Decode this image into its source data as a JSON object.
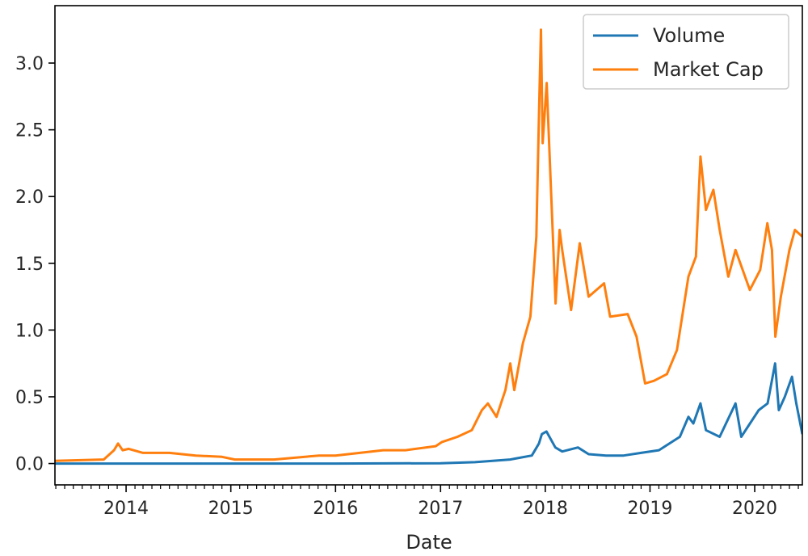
{
  "chart_data": {
    "type": "line",
    "xlabel": "Date",
    "ylabel": "",
    "xlim": [
      "2013-04-28",
      "2020-06-15"
    ],
    "ylim": [
      -0.16,
      3.43
    ],
    "x_ticks": [
      "2014",
      "2015",
      "2016",
      "2017",
      "2018",
      "2019",
      "2020"
    ],
    "y_ticks": [
      "0.0",
      "0.5",
      "1.0",
      "1.5",
      "2.0",
      "2.5",
      "3.0"
    ],
    "grid": false,
    "legend_position": "top-right",
    "series": [
      {
        "name": "Volume",
        "color": "#1f77b4",
        "points": [
          [
            "2013-04-28",
            0.0
          ],
          [
            "2014-01-01",
            0.0
          ],
          [
            "2015-01-01",
            0.0
          ],
          [
            "2016-01-01",
            0.0
          ],
          [
            "2017-01-01",
            0.002
          ],
          [
            "2017-05-01",
            0.01
          ],
          [
            "2017-09-01",
            0.03
          ],
          [
            "2017-11-15",
            0.06
          ],
          [
            "2017-12-10",
            0.15
          ],
          [
            "2017-12-20",
            0.22
          ],
          [
            "2018-01-05",
            0.24
          ],
          [
            "2018-02-05",
            0.12
          ],
          [
            "2018-03-01",
            0.09
          ],
          [
            "2018-04-25",
            0.12
          ],
          [
            "2018-06-01",
            0.07
          ],
          [
            "2018-08-01",
            0.06
          ],
          [
            "2018-10-01",
            0.06
          ],
          [
            "2018-12-01",
            0.08
          ],
          [
            "2019-02-01",
            0.1
          ],
          [
            "2019-04-15",
            0.2
          ],
          [
            "2019-05-15",
            0.35
          ],
          [
            "2019-06-01",
            0.3
          ],
          [
            "2019-06-26",
            0.45
          ],
          [
            "2019-07-15",
            0.25
          ],
          [
            "2019-09-01",
            0.2
          ],
          [
            "2019-10-26",
            0.45
          ],
          [
            "2019-11-15",
            0.2
          ],
          [
            "2020-01-15",
            0.4
          ],
          [
            "2020-02-15",
            0.45
          ],
          [
            "2020-03-12",
            0.75
          ],
          [
            "2020-03-25",
            0.4
          ],
          [
            "2020-04-15",
            0.5
          ],
          [
            "2020-05-10",
            0.65
          ],
          [
            "2020-05-25",
            0.45
          ],
          [
            "2020-06-15",
            0.22
          ]
        ]
      },
      {
        "name": "Market Cap",
        "color": "#ff7f0e",
        "points": [
          [
            "2013-04-28",
            0.02
          ],
          [
            "2013-10-15",
            0.03
          ],
          [
            "2013-11-20",
            0.1
          ],
          [
            "2013-12-04",
            0.15
          ],
          [
            "2013-12-20",
            0.1
          ],
          [
            "2014-01-10",
            0.11
          ],
          [
            "2014-03-01",
            0.08
          ],
          [
            "2014-06-01",
            0.08
          ],
          [
            "2014-09-01",
            0.06
          ],
          [
            "2014-12-01",
            0.05
          ],
          [
            "2015-01-15",
            0.03
          ],
          [
            "2015-06-01",
            0.03
          ],
          [
            "2015-11-05",
            0.06
          ],
          [
            "2016-01-01",
            0.06
          ],
          [
            "2016-06-15",
            0.1
          ],
          [
            "2016-09-01",
            0.1
          ],
          [
            "2016-12-15",
            0.13
          ],
          [
            "2017-01-05",
            0.16
          ],
          [
            "2017-03-01",
            0.2
          ],
          [
            "2017-04-20",
            0.25
          ],
          [
            "2017-05-25",
            0.4
          ],
          [
            "2017-06-15",
            0.45
          ],
          [
            "2017-07-15",
            0.35
          ],
          [
            "2017-08-15",
            0.55
          ],
          [
            "2017-09-01",
            0.75
          ],
          [
            "2017-09-15",
            0.55
          ],
          [
            "2017-10-15",
            0.9
          ],
          [
            "2017-11-10",
            1.1
          ],
          [
            "2017-12-01",
            1.7
          ],
          [
            "2017-12-10",
            2.6
          ],
          [
            "2017-12-17",
            3.25
          ],
          [
            "2017-12-23",
            2.4
          ],
          [
            "2018-01-06",
            2.85
          ],
          [
            "2018-01-20",
            2.1
          ],
          [
            "2018-02-06",
            1.2
          ],
          [
            "2018-02-20",
            1.75
          ],
          [
            "2018-03-01",
            1.6
          ],
          [
            "2018-04-01",
            1.15
          ],
          [
            "2018-05-01",
            1.65
          ],
          [
            "2018-06-01",
            1.25
          ],
          [
            "2018-07-25",
            1.35
          ],
          [
            "2018-08-15",
            1.1
          ],
          [
            "2018-10-15",
            1.12
          ],
          [
            "2018-11-15",
            0.95
          ],
          [
            "2018-12-15",
            0.6
          ],
          [
            "2019-01-15",
            0.62
          ],
          [
            "2019-03-01",
            0.67
          ],
          [
            "2019-04-05",
            0.85
          ],
          [
            "2019-05-15",
            1.4
          ],
          [
            "2019-06-10",
            1.55
          ],
          [
            "2019-06-26",
            2.3
          ],
          [
            "2019-07-15",
            1.9
          ],
          [
            "2019-08-10",
            2.05
          ],
          [
            "2019-09-01",
            1.75
          ],
          [
            "2019-10-01",
            1.4
          ],
          [
            "2019-10-26",
            1.6
          ],
          [
            "2019-12-15",
            1.3
          ],
          [
            "2020-01-20",
            1.45
          ],
          [
            "2020-02-14",
            1.8
          ],
          [
            "2020-03-01",
            1.6
          ],
          [
            "2020-03-13",
            0.95
          ],
          [
            "2020-04-01",
            1.25
          ],
          [
            "2020-05-01",
            1.6
          ],
          [
            "2020-05-20",
            1.75
          ],
          [
            "2020-06-15",
            1.7
          ]
        ]
      }
    ]
  }
}
